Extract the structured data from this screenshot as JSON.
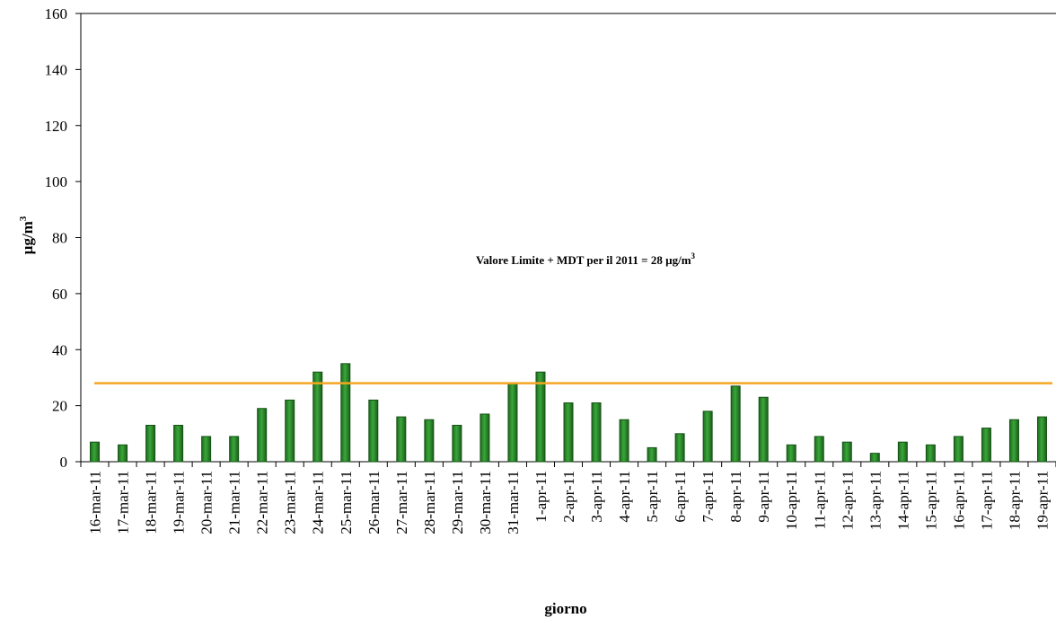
{
  "chart_data": {
    "type": "bar",
    "x_label": "giorno",
    "y_label": "µg/m",
    "y_label_sup": "3",
    "annotation": "Valore Limite  + MDT  per il 2011 = 28 µg/m",
    "annotation_sup": "3",
    "limit": 28,
    "limit_color": "#f5a623",
    "color": "#2e8b2e",
    "categories": [
      "16-mar-11",
      "17-mar-11",
      "18-mar-11",
      "19-mar-11",
      "20-mar-11",
      "21-mar-11",
      "22-mar-11",
      "23-mar-11",
      "24-mar-11",
      "25-mar-11",
      "26-mar-11",
      "27-mar-11",
      "28-mar-11",
      "29-mar-11",
      "30-mar-11",
      "31-mar-11",
      "1-apr-11",
      "2-apr-11",
      "3-apr-11",
      "4-apr-11",
      "5-apr-11",
      "6-apr-11",
      "7-apr-11",
      "8-apr-11",
      "9-apr-11",
      "10-apr-11",
      "11-apr-11",
      "12-apr-11",
      "13-apr-11",
      "14-apr-11",
      "15-apr-11",
      "16-apr-11",
      "17-apr-11",
      "18-apr-11",
      "19-apr-11"
    ],
    "values": [
      7,
      6,
      13,
      13,
      9,
      9,
      19,
      22,
      32,
      35,
      22,
      16,
      15,
      13,
      17,
      28,
      32,
      21,
      21,
      15,
      5,
      10,
      18,
      27,
      23,
      6,
      9,
      7,
      3,
      7,
      6,
      9,
      12,
      15,
      16
    ],
    "ylim": [
      0,
      160
    ],
    "yticks": [
      0,
      20,
      40,
      60,
      80,
      100,
      120,
      140,
      160
    ]
  }
}
